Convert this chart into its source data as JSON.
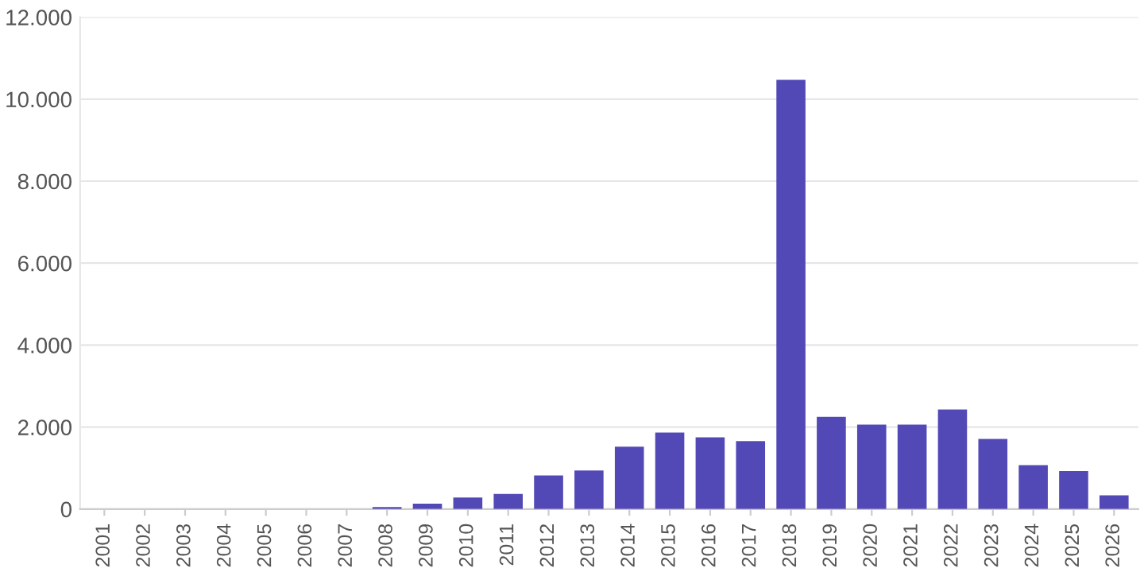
{
  "chart_data": {
    "type": "bar",
    "categories": [
      "2001",
      "2002",
      "2003",
      "2004",
      "2005",
      "2006",
      "2007",
      "2008",
      "2009",
      "2010",
      "2011",
      "2012",
      "2013",
      "2014",
      "2015",
      "2016",
      "2017",
      "2018",
      "2019",
      "2020",
      "2021",
      "2022",
      "2023",
      "2024",
      "2025",
      "2026"
    ],
    "values": [
      null,
      null,
      null,
      null,
      null,
      0,
      null,
      50,
      130,
      280,
      370,
      820,
      940,
      1520,
      1865,
      1750,
      1660,
      10470,
      2250,
      2060,
      2060,
      2430,
      1710,
      1070,
      925,
      335
    ],
    "color": "#5249b7",
    "ylim": [
      0,
      12000
    ],
    "yticks": [
      0,
      {
        "value": 2000,
        "label": "2.000"
      },
      {
        "value": 4000,
        "label": "4.000"
      },
      {
        "value": 6000,
        "label": "6.000"
      },
      {
        "value": 8000,
        "label": "8.000"
      },
      {
        "value": 10000,
        "label": "10.000"
      },
      {
        "value": 12000,
        "label": "12.000"
      }
    ],
    "grid": "y"
  }
}
